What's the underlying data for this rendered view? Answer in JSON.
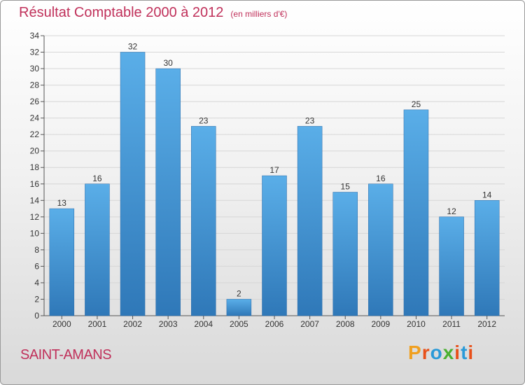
{
  "title": "Résultat Comptable 2000 à 2012",
  "subtitle": "(en milliers d'€)",
  "commune": "SAINT-AMANS",
  "logo": {
    "text": "Proxiti",
    "colors": [
      "#f0a020",
      "#e8501a",
      "#2a9ad8",
      "#4ab030",
      "#e8501a",
      "#2a9ad8",
      "#e8501a"
    ]
  },
  "colors": {
    "accent": "#c0305a",
    "bar_top": "#5aaee8",
    "bar_bottom": "#2f78b8"
  },
  "chart_data": {
    "type": "bar",
    "categories": [
      "2000",
      "2001",
      "2002",
      "2003",
      "2004",
      "2005",
      "2006",
      "2007",
      "2008",
      "2009",
      "2010",
      "2011",
      "2012"
    ],
    "values": [
      13,
      16,
      32,
      30,
      23,
      2,
      17,
      23,
      15,
      16,
      25,
      12,
      14
    ],
    "ylim": [
      0,
      34
    ],
    "yticks": [
      0,
      2,
      4,
      6,
      8,
      10,
      12,
      14,
      16,
      18,
      20,
      22,
      24,
      26,
      28,
      30,
      32,
      34
    ],
    "grid": true
  }
}
